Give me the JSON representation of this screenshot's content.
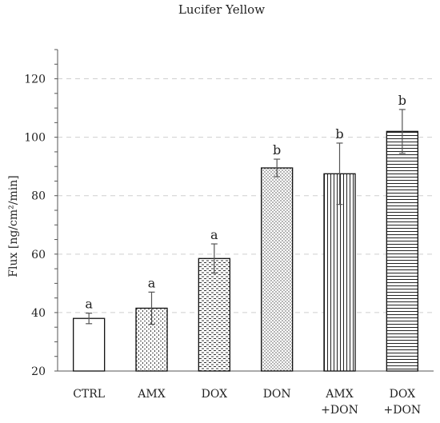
{
  "chart_data": {
    "type": "bar",
    "title": "Lucifer Yellow",
    "xlabel": "",
    "ylabel": "Flux [ng/cm²/min]",
    "ylim": [
      20,
      130
    ],
    "yticks": [
      20,
      40,
      60,
      80,
      100,
      120
    ],
    "grid": true,
    "categories": [
      [
        "CTRL"
      ],
      [
        "AMX"
      ],
      [
        "DOX"
      ],
      [
        "DON"
      ],
      [
        "AMX",
        "+DON"
      ],
      [
        "DOX",
        "+DON"
      ]
    ],
    "values": [
      38,
      41.5,
      58.5,
      89.5,
      87.5,
      102
    ],
    "errors": [
      1.8,
      5.5,
      5,
      3,
      10.5,
      7.5
    ],
    "significance": [
      "a",
      "a",
      "a",
      "b",
      "b",
      "b"
    ],
    "patterns": [
      "solid-white",
      "fine-dashes",
      "dashes",
      "dots",
      "vertical-lines",
      "horizontal-lines"
    ]
  }
}
